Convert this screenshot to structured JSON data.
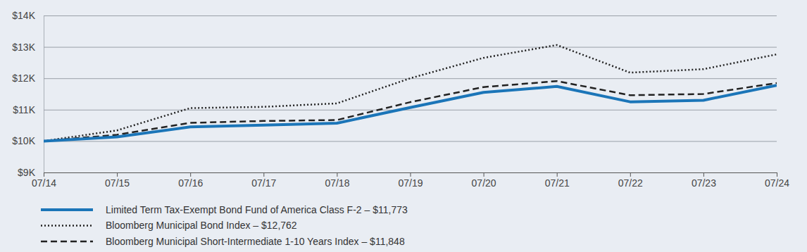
{
  "chart_data": {
    "type": "line",
    "categories": [
      "07/14",
      "07/15",
      "07/16",
      "07/17",
      "07/18",
      "07/19",
      "07/20",
      "07/21",
      "07/22",
      "07/23",
      "07/24"
    ],
    "series": [
      {
        "name": "Limited Term Tax-Exempt Bond Fund of America Class F-2 – $11,773",
        "color": "#1b75b8",
        "line_style": "solid",
        "values": [
          10000,
          10130,
          10450,
          10510,
          10570,
          11070,
          11550,
          11740,
          11250,
          11300,
          11773
        ]
      },
      {
        "name": "Bloomberg Municipal Bond Index – $12,762",
        "color": "#222222",
        "line_style": "dotted",
        "values": [
          10000,
          10340,
          11050,
          11090,
          11200,
          12000,
          12650,
          13060,
          12180,
          12290,
          12762
        ]
      },
      {
        "name": "Bloomberg Municipal Short-Intermediate 1-10 Years Index – $11,848",
        "color": "#222222",
        "line_style": "dashed",
        "values": [
          10000,
          10200,
          10580,
          10640,
          10670,
          11240,
          11720,
          11910,
          11460,
          11500,
          11848
        ]
      }
    ],
    "ylim": [
      9000,
      14000
    ],
    "yticks": [
      {
        "value": 9000,
        "label": "$9K"
      },
      {
        "value": 10000,
        "label": "$10K"
      },
      {
        "value": 11000,
        "label": "$11K"
      },
      {
        "value": 12000,
        "label": "$12K"
      },
      {
        "value": 13000,
        "label": "$13K"
      },
      {
        "value": 14000,
        "label": "$14K"
      }
    ],
    "grid": true,
    "legend": "bottom"
  }
}
